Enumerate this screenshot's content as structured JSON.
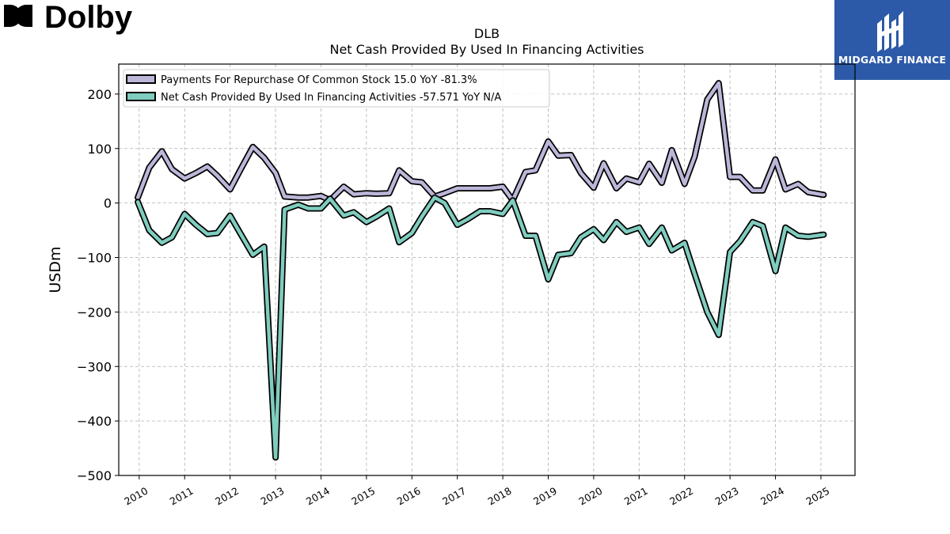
{
  "brand_left": {
    "name": "Dolby"
  },
  "brand_right": {
    "name": "MIDGARD FINANCE"
  },
  "chart_data": {
    "type": "line",
    "title": "DLB",
    "subtitle": "Net Cash Provided By Used In Financing Activities",
    "xlabel": "",
    "ylabel": "USDm",
    "xlim": [
      2009.55,
      2025.75
    ],
    "ylim": [
      -500,
      255
    ],
    "yticks": [
      200,
      100,
      0,
      -100,
      -200,
      -300,
      -400,
      -500
    ],
    "ytick_labels": [
      "200",
      "100",
      "0",
      "−100",
      "−200",
      "−300",
      "−400",
      "−500"
    ],
    "xticks": [
      2010,
      2011,
      2012,
      2013,
      2014,
      2015,
      2016,
      2017,
      2018,
      2019,
      2020,
      2021,
      2022,
      2023,
      2024,
      2025
    ],
    "grid": true,
    "legend_position": "top-left",
    "series": [
      {
        "name": "Payments For Repurchase Of Common Stock",
        "legend_label": "Payments For Repurchase Of Common Stock  15.0 YoY -81.3%",
        "color": "#bcb6d9",
        "x": [
          2009.97,
          2010.22,
          2010.5,
          2010.72,
          2011.0,
          2011.25,
          2011.5,
          2011.72,
          2012.0,
          2012.22,
          2012.5,
          2012.75,
          2013.0,
          2013.2,
          2013.5,
          2013.72,
          2014.0,
          2014.2,
          2014.5,
          2014.72,
          2015.0,
          2015.22,
          2015.5,
          2015.72,
          2016.0,
          2016.22,
          2016.5,
          2016.72,
          2017.0,
          2017.22,
          2017.5,
          2017.72,
          2018.0,
          2018.22,
          2018.5,
          2018.72,
          2019.0,
          2019.22,
          2019.5,
          2019.72,
          2020.0,
          2020.22,
          2020.5,
          2020.72,
          2021.0,
          2021.22,
          2021.5,
          2021.72,
          2022.0,
          2022.22,
          2022.5,
          2022.75,
          2023.0,
          2023.22,
          2023.5,
          2023.72,
          2024.0,
          2024.22,
          2024.5,
          2024.72,
          2025.06
        ],
        "y": [
          10,
          65,
          95,
          62,
          45,
          55,
          67,
          50,
          25,
          60,
          103,
          83,
          55,
          12,
          10,
          10,
          13,
          5,
          30,
          16,
          18,
          17,
          18,
          60,
          40,
          38,
          12,
          18,
          27,
          27,
          27,
          27,
          30,
          5,
          57,
          60,
          113,
          87,
          88,
          55,
          28,
          73,
          27,
          45,
          38,
          72,
          37,
          97,
          35,
          85,
          190,
          220,
          48,
          48,
          23,
          23,
          80,
          25,
          35,
          20,
          15
        ]
      },
      {
        "name": "Net Cash Provided By Used In Financing Activities",
        "legend_label": "Net Cash Provided By Used In Financing Activities  -57.571 YoY N/A",
        "color": "#7fcdbf",
        "x": [
          2009.97,
          2010.22,
          2010.5,
          2010.72,
          2011.0,
          2011.25,
          2011.5,
          2011.72,
          2012.0,
          2012.22,
          2012.5,
          2012.75,
          2013.0,
          2013.2,
          2013.5,
          2013.72,
          2014.0,
          2014.2,
          2014.5,
          2014.72,
          2015.0,
          2015.22,
          2015.5,
          2015.72,
          2016.0,
          2016.22,
          2016.5,
          2016.72,
          2017.0,
          2017.22,
          2017.5,
          2017.72,
          2018.0,
          2018.22,
          2018.5,
          2018.72,
          2019.0,
          2019.22,
          2019.5,
          2019.72,
          2020.0,
          2020.22,
          2020.5,
          2020.72,
          2021.0,
          2021.22,
          2021.5,
          2021.72,
          2022.0,
          2022.22,
          2022.5,
          2022.75,
          2023.0,
          2023.22,
          2023.5,
          2023.72,
          2024.0,
          2024.22,
          2024.5,
          2024.72,
          2025.06
        ],
        "y": [
          2,
          -50,
          -73,
          -63,
          -20,
          -40,
          -57,
          -55,
          -23,
          -55,
          -95,
          -80,
          -467,
          -12,
          -3,
          -10,
          -10,
          8,
          -23,
          -17,
          -35,
          -25,
          -10,
          -72,
          -55,
          -25,
          10,
          0,
          -40,
          -30,
          -15,
          -15,
          -20,
          5,
          -60,
          -60,
          -140,
          -95,
          -92,
          -63,
          -48,
          -68,
          -35,
          -53,
          -45,
          -75,
          -45,
          -87,
          -73,
          -130,
          -200,
          -242,
          -90,
          -70,
          -35,
          -42,
          -125,
          -45,
          -60,
          -62,
          -58
        ]
      }
    ]
  }
}
